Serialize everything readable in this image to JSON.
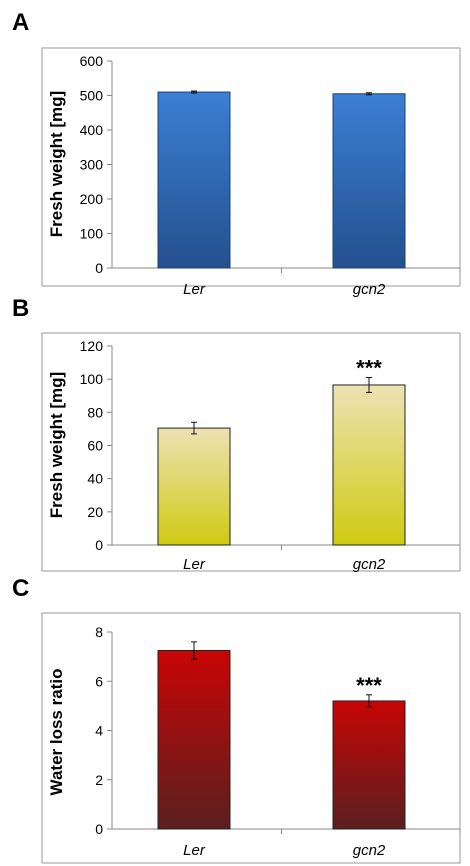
{
  "chart_data": [
    {
      "panel": "A",
      "type": "bar",
      "categories": [
        "Ler",
        "gcn2"
      ],
      "values": [
        510,
        505
      ],
      "errors": [
        3,
        3
      ],
      "annotations": [
        "",
        ""
      ],
      "ylabel": "Fresh weight [mg]",
      "ylim": [
        0,
        600
      ],
      "yticks": [
        "0",
        "100",
        "200",
        "300",
        "400",
        "500",
        "600"
      ],
      "colors": {
        "top": "#3b7fd4",
        "bottom": "#24508e",
        "stroke": "#1f3f70"
      }
    },
    {
      "panel": "B",
      "type": "bar",
      "categories": [
        "Ler",
        "gcn2"
      ],
      "values": [
        70.5,
        96.5
      ],
      "errors": [
        3.5,
        4.5
      ],
      "annotations": [
        "",
        "***"
      ],
      "ylabel": "Fresh weight [mg]",
      "ylim": [
        0,
        120
      ],
      "yticks": [
        "0",
        "20",
        "40",
        "60",
        "80",
        "100",
        "120"
      ],
      "colors": {
        "top": "#ede2b4",
        "bottom": "#cfcb12",
        "stroke": "#222222"
      }
    },
    {
      "panel": "C",
      "type": "bar",
      "categories": [
        "Ler",
        "gcn2"
      ],
      "values": [
        7.25,
        5.2
      ],
      "errors": [
        0.35,
        0.25
      ],
      "annotations": [
        "",
        "***"
      ],
      "ylabel": "Water loss ratio",
      "ylim": [
        0,
        8
      ],
      "yticks": [
        "0",
        "2",
        "4",
        "6",
        "8"
      ],
      "colors": {
        "top": "#c80505",
        "bottom": "#5a1f1f",
        "stroke": "#222222"
      }
    }
  ]
}
